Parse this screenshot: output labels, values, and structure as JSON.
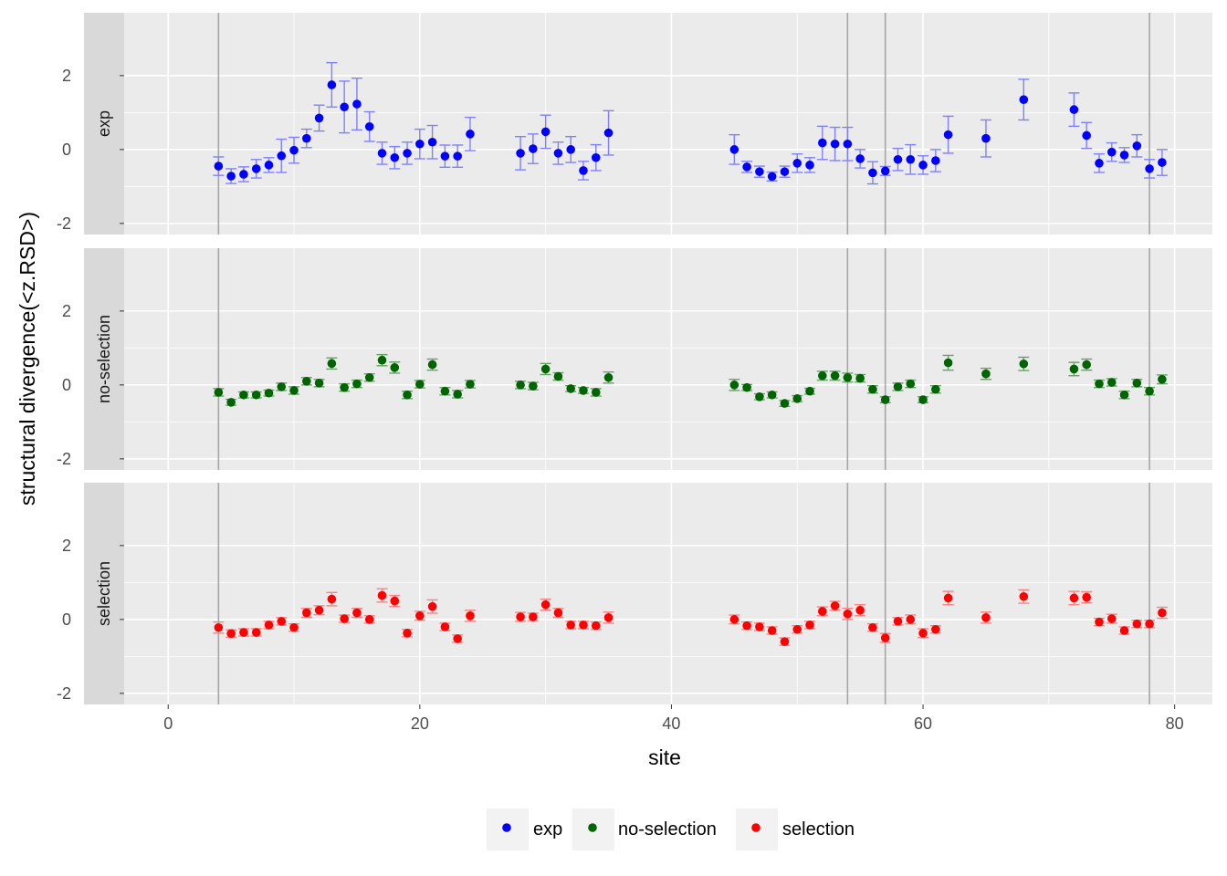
{
  "chart_data": {
    "type": "scatter",
    "xlabel": "site",
    "ylabel": "structural divergence(<z.RSD>)",
    "xlim": [
      -3.5,
      83
    ],
    "ylim": [
      -2.3,
      3.7
    ],
    "x_ticks": [
      0,
      20,
      40,
      60,
      80
    ],
    "y_ticks": [
      -2,
      0,
      2
    ],
    "grid": true,
    "legend_position": "bottom",
    "vlines": [
      4,
      54,
      57,
      78
    ],
    "colors": {
      "exp": "#0000ff",
      "no-selection": "#006400",
      "selection": "#ff0000"
    },
    "errorbar_colors": {
      "exp": "#8080ff",
      "no-selection": "#66a266",
      "selection": "#ff8080"
    },
    "legend": [
      "exp",
      "no-selection",
      "selection"
    ],
    "x": [
      4,
      5,
      6,
      7,
      8,
      9,
      10,
      11,
      12,
      13,
      14,
      15,
      16,
      17,
      18,
      19,
      20,
      21,
      22,
      23,
      24,
      28,
      29,
      30,
      31,
      32,
      33,
      34,
      35,
      45,
      46,
      47,
      48,
      49,
      50,
      51,
      52,
      53,
      54,
      55,
      56,
      57,
      58,
      59,
      60,
      61,
      62,
      65,
      68,
      72,
      73,
      74,
      75,
      76,
      77,
      78,
      79
    ],
    "panels": [
      {
        "name": "exp",
        "y": [
          -0.45,
          -0.72,
          -0.67,
          -0.52,
          -0.42,
          -0.17,
          -0.02,
          0.3,
          0.85,
          1.75,
          1.15,
          1.23,
          0.62,
          -0.1,
          -0.22,
          -0.1,
          0.15,
          0.2,
          -0.18,
          -0.18,
          0.42,
          -0.1,
          0.02,
          0.48,
          -0.1,
          0.0,
          -0.57,
          -0.22,
          0.45,
          0.0,
          -0.47,
          -0.6,
          -0.73,
          -0.6,
          -0.37,
          -0.42,
          0.18,
          0.15,
          0.15,
          -0.25,
          -0.63,
          -0.58,
          -0.27,
          -0.27,
          -0.42,
          -0.3,
          0.4,
          0.3,
          1.35,
          1.08,
          0.38,
          -0.37,
          -0.07,
          -0.15,
          0.1,
          -0.52,
          -0.35
        ],
        "err": [
          0.25,
          0.2,
          0.2,
          0.25,
          0.2,
          0.45,
          0.35,
          0.25,
          0.35,
          0.6,
          0.7,
          0.7,
          0.4,
          0.3,
          0.3,
          0.3,
          0.4,
          0.45,
          0.3,
          0.3,
          0.45,
          0.45,
          0.4,
          0.45,
          0.3,
          0.35,
          0.25,
          0.35,
          0.6,
          0.4,
          0.15,
          0.15,
          0.12,
          0.15,
          0.25,
          0.2,
          0.45,
          0.45,
          0.45,
          0.25,
          0.3,
          0.12,
          0.3,
          0.4,
          0.25,
          0.3,
          0.5,
          0.5,
          0.55,
          0.45,
          0.35,
          0.25,
          0.25,
          0.2,
          0.3,
          0.25,
          0.35
        ]
      },
      {
        "name": "no-selection",
        "y": [
          -0.2,
          -0.47,
          -0.27,
          -0.27,
          -0.22,
          -0.05,
          -0.15,
          0.1,
          0.05,
          0.58,
          -0.07,
          0.03,
          0.2,
          0.67,
          0.47,
          -0.27,
          0.02,
          0.55,
          -0.17,
          -0.25,
          0.02,
          0.0,
          -0.03,
          0.43,
          0.23,
          -0.1,
          -0.15,
          -0.2,
          0.2,
          0.0,
          -0.07,
          -0.32,
          -0.27,
          -0.5,
          -0.37,
          -0.17,
          0.25,
          0.25,
          0.2,
          0.18,
          -0.12,
          -0.4,
          -0.05,
          0.03,
          -0.4,
          -0.12,
          0.6,
          0.3,
          0.57,
          0.43,
          0.55,
          0.03,
          0.07,
          -0.27,
          0.05,
          -0.17,
          0.15
        ],
        "err": [
          0.1,
          0.08,
          0.08,
          0.08,
          0.08,
          0.1,
          0.1,
          0.1,
          0.1,
          0.15,
          0.1,
          0.1,
          0.1,
          0.15,
          0.15,
          0.1,
          0.1,
          0.15,
          0.1,
          0.1,
          0.1,
          0.1,
          0.1,
          0.15,
          0.1,
          0.08,
          0.08,
          0.1,
          0.15,
          0.15,
          0.08,
          0.08,
          0.08,
          0.08,
          0.08,
          0.08,
          0.12,
          0.12,
          0.12,
          0.1,
          0.1,
          0.08,
          0.1,
          0.1,
          0.08,
          0.1,
          0.2,
          0.15,
          0.18,
          0.18,
          0.15,
          0.1,
          0.1,
          0.1,
          0.1,
          0.1,
          0.12
        ]
      },
      {
        "name": "selection",
        "y": [
          -0.22,
          -0.38,
          -0.35,
          -0.35,
          -0.15,
          -0.05,
          -0.22,
          0.18,
          0.25,
          0.55,
          0.02,
          0.18,
          0.0,
          0.65,
          0.5,
          -0.37,
          0.1,
          0.35,
          -0.2,
          -0.52,
          0.1,
          0.07,
          0.07,
          0.4,
          0.18,
          -0.15,
          -0.15,
          -0.17,
          0.05,
          0.0,
          -0.17,
          -0.2,
          -0.3,
          -0.6,
          -0.27,
          -0.15,
          0.22,
          0.37,
          0.15,
          0.25,
          -0.22,
          -0.5,
          -0.05,
          0.0,
          -0.37,
          -0.27,
          0.58,
          0.05,
          0.62,
          0.58,
          0.6,
          -0.07,
          0.02,
          -0.3,
          -0.12,
          -0.12,
          0.18
        ],
        "err": [
          0.15,
          0.1,
          0.1,
          0.1,
          0.1,
          0.1,
          0.1,
          0.12,
          0.12,
          0.18,
          0.1,
          0.12,
          0.1,
          0.18,
          0.15,
          0.1,
          0.12,
          0.18,
          0.1,
          0.1,
          0.15,
          0.12,
          0.1,
          0.15,
          0.12,
          0.1,
          0.1,
          0.1,
          0.15,
          0.12,
          0.1,
          0.1,
          0.1,
          0.1,
          0.1,
          0.1,
          0.12,
          0.12,
          0.15,
          0.15,
          0.1,
          0.12,
          0.1,
          0.12,
          0.12,
          0.1,
          0.18,
          0.15,
          0.18,
          0.18,
          0.15,
          0.1,
          0.12,
          0.1,
          0.1,
          0.1,
          0.15
        ]
      }
    ]
  }
}
